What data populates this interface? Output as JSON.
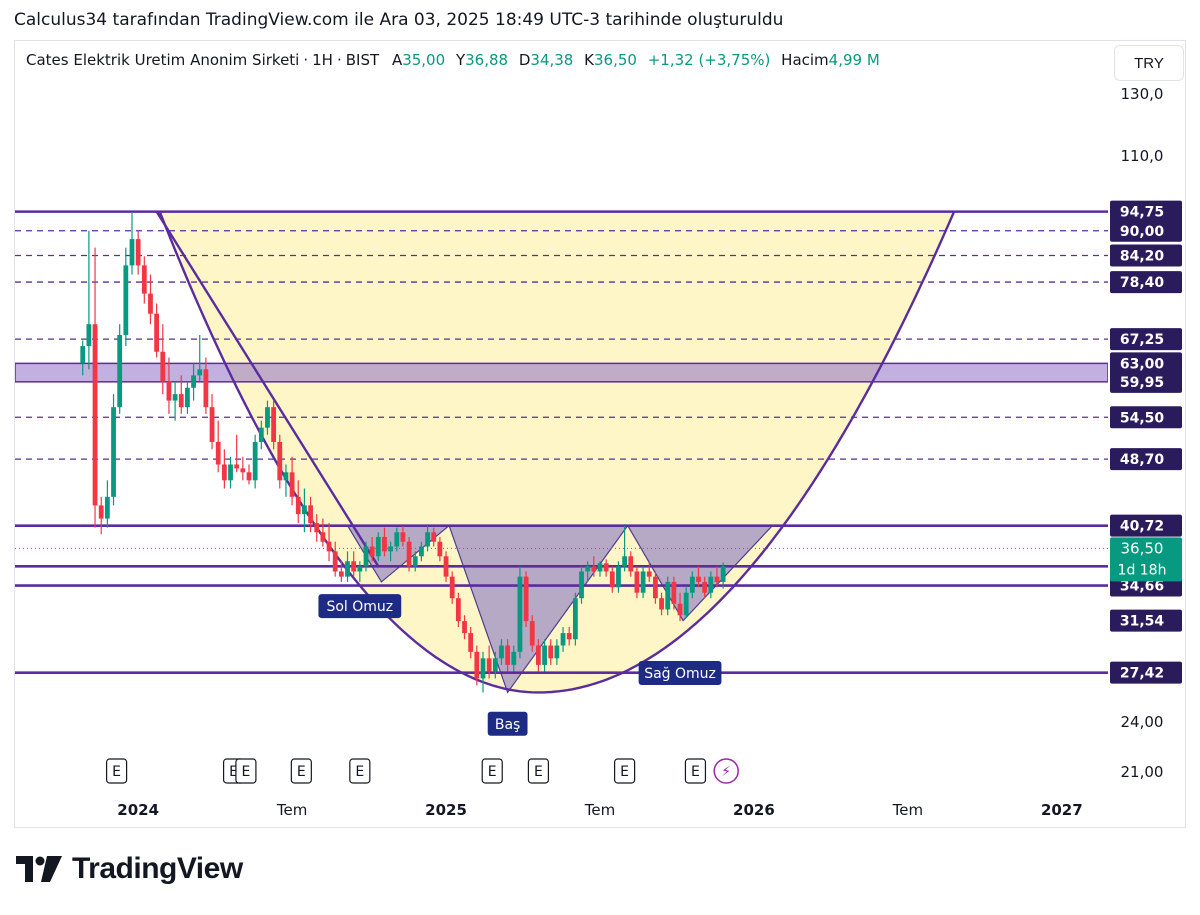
{
  "caption": "Calculus34 tarafından TradingView.com ile Ara 03, 2025 18:49 UTC-3 tarihinde oluşturuldu",
  "legend": {
    "symbol": "Cates Elektrik Uretim Anonim Sirketi",
    "interval": "1H",
    "exchange": "BIST",
    "open_key": "A",
    "open": "35,00",
    "high_key": "Y",
    "high": "36,88",
    "low_key": "D",
    "low": "34,38",
    "close_key": "K",
    "close": "36,50",
    "change": "+1,32 (+3,75%)",
    "volume_key": "Hacim",
    "volume": "4,99 M"
  },
  "currency": "TRY",
  "logo": "TradingView",
  "colors": {
    "up": "#089981",
    "down": "#f23645",
    "line": "#5b2c9e",
    "zone": "#8e6fc6",
    "cup_fill": "#fff6c8",
    "shoulder_fill": "#a99bc5",
    "label_bg": "#1d2b84",
    "price_label_bg": "#2a1c5c",
    "last_price_bg": "#089981"
  },
  "chart_data": {
    "type": "candlestick",
    "title": "Cates Elektrik Uretim Anonim Sirketi · 1H · BIST",
    "ylim": [
      20,
      135
    ],
    "xlim": [
      2023.6,
      2027.15
    ],
    "x_ticks": [
      {
        "x": 2024.0,
        "label": "2024",
        "bold": true
      },
      {
        "x": 2024.5,
        "label": "Tem",
        "bold": false
      },
      {
        "x": 2025.0,
        "label": "2025",
        "bold": true
      },
      {
        "x": 2025.5,
        "label": "Tem",
        "bold": false
      },
      {
        "x": 2026.0,
        "label": "2026",
        "bold": true
      },
      {
        "x": 2026.5,
        "label": "Tem",
        "bold": false
      },
      {
        "x": 2027.0,
        "label": "2027",
        "bold": true
      }
    ],
    "y_ticks": [
      {
        "y": 130,
        "label": "130,0"
      },
      {
        "y": 110,
        "label": "110,0"
      },
      {
        "y": 24,
        "label": "24,00"
      },
      {
        "y": 21,
        "label": "21,00"
      }
    ],
    "solid_levels": [
      94.75,
      40.72,
      36.5,
      34.66,
      27.42
    ],
    "dashed_levels": [
      90.0,
      84.2,
      78.4,
      67.25,
      54.5,
      48.7
    ],
    "zone": [
      59.95,
      63.0
    ],
    "price_labels": [
      "94,75",
      "90,00",
      "84,20",
      "78,40",
      "67,25",
      "63,00",
      "59,95",
      "54,50",
      "48,70",
      "40,72",
      "34,66",
      "31,54",
      "27,42"
    ],
    "price_label_values": [
      94.75,
      90.0,
      84.2,
      78.4,
      67.25,
      63.0,
      59.95,
      54.5,
      48.7,
      40.72,
      34.66,
      31.54,
      27.42
    ],
    "last_price": {
      "value": 36.5,
      "label": "36,50",
      "countdown": "1d 18h"
    },
    "annotations": [
      {
        "text": "Sol Omuz",
        "x": 2024.72,
        "y": 32.8
      },
      {
        "text": "Baş",
        "x": 2025.2,
        "y": 23.9
      },
      {
        "text": "Sağ Omuz",
        "x": 2025.76,
        "y": 27.4
      }
    ],
    "cup": {
      "left": {
        "x": 2024.07,
        "y": 94.75
      },
      "bottom": {
        "x": 2025.3,
        "y": 26.0
      },
      "right": {
        "x": 2026.65,
        "y": 94.75
      }
    },
    "descending_trendline": [
      {
        "x": 2024.06,
        "y": 94.75
      },
      {
        "x": 2024.78,
        "y": 36.5
      }
    ],
    "shoulders": [
      {
        "points": [
          {
            "x": 2024.68,
            "y": 40.72
          },
          {
            "x": 2024.79,
            "y": 35.0
          },
          {
            "x": 2025.01,
            "y": 40.72
          }
        ]
      },
      {
        "points": [
          {
            "x": 2025.01,
            "y": 40.72
          },
          {
            "x": 2025.2,
            "y": 26.0
          },
          {
            "x": 2025.59,
            "y": 40.72
          }
        ]
      },
      {
        "points": [
          {
            "x": 2025.59,
            "y": 40.72
          },
          {
            "x": 2025.77,
            "y": 31.54
          },
          {
            "x": 2026.06,
            "y": 40.72
          }
        ]
      }
    ],
    "events": [
      {
        "x": 2023.93,
        "label": "E"
      },
      {
        "x": 2024.31,
        "label": "E"
      },
      {
        "x": 2024.35,
        "label": "E"
      },
      {
        "x": 2024.53,
        "label": "E"
      },
      {
        "x": 2024.72,
        "label": "E"
      },
      {
        "x": 2025.15,
        "label": "E"
      },
      {
        "x": 2025.3,
        "label": "E"
      },
      {
        "x": 2025.58,
        "label": "E"
      },
      {
        "x": 2025.81,
        "label": "E"
      },
      {
        "x": 2025.91,
        "label": "⚡"
      }
    ],
    "candles": [
      {
        "x": 2023.82,
        "o": 63,
        "h": 67,
        "l": 61,
        "c": 66
      },
      {
        "x": 2023.84,
        "o": 66,
        "h": 90,
        "l": 62,
        "c": 70
      },
      {
        "x": 2023.86,
        "o": 70,
        "h": 86,
        "l": 40.5,
        "c": 43
      },
      {
        "x": 2023.88,
        "o": 43,
        "h": 44,
        "l": 39.8,
        "c": 41.5
      },
      {
        "x": 2023.9,
        "o": 41.5,
        "h": 46,
        "l": 40.5,
        "c": 44
      },
      {
        "x": 2023.92,
        "o": 44,
        "h": 58,
        "l": 43,
        "c": 56
      },
      {
        "x": 2023.94,
        "o": 56,
        "h": 70,
        "l": 55,
        "c": 68
      },
      {
        "x": 2023.96,
        "o": 68,
        "h": 86,
        "l": 66,
        "c": 82
      },
      {
        "x": 2023.98,
        "o": 82,
        "h": 94.75,
        "l": 80,
        "c": 88
      },
      {
        "x": 2024.0,
        "o": 88,
        "h": 90,
        "l": 80,
        "c": 82
      },
      {
        "x": 2024.02,
        "o": 82,
        "h": 84,
        "l": 74,
        "c": 76
      },
      {
        "x": 2024.04,
        "o": 76,
        "h": 80,
        "l": 70,
        "c": 72
      },
      {
        "x": 2024.06,
        "o": 72,
        "h": 74,
        "l": 64,
        "c": 65
      },
      {
        "x": 2024.08,
        "o": 65,
        "h": 70,
        "l": 58,
        "c": 60
      },
      {
        "x": 2024.1,
        "o": 60,
        "h": 64,
        "l": 55,
        "c": 57
      },
      {
        "x": 2024.12,
        "o": 57,
        "h": 60,
        "l": 54,
        "c": 58
      },
      {
        "x": 2024.14,
        "o": 58,
        "h": 61,
        "l": 55,
        "c": 56
      },
      {
        "x": 2024.16,
        "o": 56,
        "h": 60,
        "l": 55,
        "c": 59
      },
      {
        "x": 2024.18,
        "o": 59,
        "h": 63,
        "l": 57,
        "c": 61
      },
      {
        "x": 2024.2,
        "o": 61,
        "h": 68,
        "l": 60,
        "c": 62
      },
      {
        "x": 2024.22,
        "o": 62,
        "h": 64,
        "l": 55,
        "c": 56
      },
      {
        "x": 2024.24,
        "o": 56,
        "h": 58,
        "l": 50,
        "c": 51
      },
      {
        "x": 2024.26,
        "o": 51,
        "h": 54,
        "l": 47,
        "c": 48
      },
      {
        "x": 2024.28,
        "o": 48,
        "h": 50,
        "l": 45,
        "c": 46
      },
      {
        "x": 2024.3,
        "o": 46,
        "h": 49,
        "l": 45,
        "c": 48
      },
      {
        "x": 2024.32,
        "o": 48,
        "h": 52,
        "l": 47,
        "c": 47.5
      },
      {
        "x": 2024.34,
        "o": 47.5,
        "h": 49,
        "l": 46,
        "c": 47
      },
      {
        "x": 2024.36,
        "o": 47,
        "h": 48,
        "l": 45.5,
        "c": 46
      },
      {
        "x": 2024.38,
        "o": 46,
        "h": 52,
        "l": 45,
        "c": 51
      },
      {
        "x": 2024.4,
        "o": 51,
        "h": 54,
        "l": 50,
        "c": 53
      },
      {
        "x": 2024.42,
        "o": 53,
        "h": 57,
        "l": 52,
        "c": 56
      },
      {
        "x": 2024.44,
        "o": 56,
        "h": 57,
        "l": 50,
        "c": 51
      },
      {
        "x": 2024.46,
        "o": 51,
        "h": 52,
        "l": 45,
        "c": 46
      },
      {
        "x": 2024.48,
        "o": 46,
        "h": 48,
        "l": 44,
        "c": 47
      },
      {
        "x": 2024.5,
        "o": 47,
        "h": 49,
        "l": 43,
        "c": 44
      },
      {
        "x": 2024.52,
        "o": 44,
        "h": 46,
        "l": 41,
        "c": 42
      },
      {
        "x": 2024.54,
        "o": 42,
        "h": 45,
        "l": 40,
        "c": 43
      },
      {
        "x": 2024.56,
        "o": 43,
        "h": 44,
        "l": 40,
        "c": 41
      },
      {
        "x": 2024.58,
        "o": 41,
        "h": 42,
        "l": 39,
        "c": 40
      },
      {
        "x": 2024.6,
        "o": 40,
        "h": 41.5,
        "l": 38.5,
        "c": 39
      },
      {
        "x": 2024.62,
        "o": 39,
        "h": 41,
        "l": 37,
        "c": 38
      },
      {
        "x": 2024.64,
        "o": 38,
        "h": 39,
        "l": 35.5,
        "c": 36
      },
      {
        "x": 2024.66,
        "o": 36,
        "h": 37,
        "l": 35,
        "c": 35.5
      },
      {
        "x": 2024.68,
        "o": 35.5,
        "h": 38,
        "l": 35,
        "c": 37
      },
      {
        "x": 2024.7,
        "o": 37,
        "h": 38,
        "l": 35.5,
        "c": 36
      },
      {
        "x": 2024.72,
        "o": 36,
        "h": 37,
        "l": 35,
        "c": 36.5
      },
      {
        "x": 2024.74,
        "o": 36.5,
        "h": 39,
        "l": 36,
        "c": 38.5
      },
      {
        "x": 2024.76,
        "o": 38.5,
        "h": 39.5,
        "l": 37,
        "c": 37.5
      },
      {
        "x": 2024.78,
        "o": 37.5,
        "h": 40,
        "l": 37,
        "c": 39.5
      },
      {
        "x": 2024.8,
        "o": 39.5,
        "h": 40.5,
        "l": 37.5,
        "c": 38
      },
      {
        "x": 2024.82,
        "o": 38,
        "h": 39,
        "l": 37,
        "c": 38.5
      },
      {
        "x": 2024.84,
        "o": 38.5,
        "h": 40.5,
        "l": 38,
        "c": 40
      },
      {
        "x": 2024.86,
        "o": 40,
        "h": 40.7,
        "l": 38.5,
        "c": 39
      },
      {
        "x": 2024.88,
        "o": 39,
        "h": 39.5,
        "l": 36,
        "c": 36.5
      },
      {
        "x": 2024.9,
        "o": 36.5,
        "h": 38,
        "l": 36,
        "c": 37.5
      },
      {
        "x": 2024.92,
        "o": 37.5,
        "h": 39,
        "l": 37,
        "c": 38.5
      },
      {
        "x": 2024.94,
        "o": 38.5,
        "h": 40.7,
        "l": 38,
        "c": 40
      },
      {
        "x": 2024.96,
        "o": 40,
        "h": 40.5,
        "l": 38.5,
        "c": 39
      },
      {
        "x": 2024.98,
        "o": 39,
        "h": 39.5,
        "l": 37,
        "c": 37.5
      },
      {
        "x": 2025.0,
        "o": 37.5,
        "h": 38,
        "l": 35,
        "c": 35.5
      },
      {
        "x": 2025.02,
        "o": 35.5,
        "h": 36,
        "l": 33,
        "c": 33.5
      },
      {
        "x": 2025.04,
        "o": 33.5,
        "h": 34,
        "l": 31,
        "c": 31.5
      },
      {
        "x": 2025.06,
        "o": 31.5,
        "h": 32,
        "l": 30,
        "c": 30.5
      },
      {
        "x": 2025.08,
        "o": 30.5,
        "h": 31,
        "l": 28.5,
        "c": 29
      },
      {
        "x": 2025.1,
        "o": 29,
        "h": 29.5,
        "l": 26.5,
        "c": 27
      },
      {
        "x": 2025.12,
        "o": 27,
        "h": 29,
        "l": 26,
        "c": 28.5
      },
      {
        "x": 2025.14,
        "o": 28.5,
        "h": 29.5,
        "l": 27,
        "c": 27.5
      },
      {
        "x": 2025.16,
        "o": 27.5,
        "h": 29,
        "l": 27,
        "c": 28.5
      },
      {
        "x": 2025.18,
        "o": 28.5,
        "h": 30,
        "l": 28,
        "c": 29.5
      },
      {
        "x": 2025.2,
        "o": 29.5,
        "h": 30,
        "l": 27.5,
        "c": 28
      },
      {
        "x": 2025.22,
        "o": 28,
        "h": 29.5,
        "l": 27.5,
        "c": 29
      },
      {
        "x": 2025.24,
        "o": 29,
        "h": 36.5,
        "l": 28.5,
        "c": 35.5
      },
      {
        "x": 2025.26,
        "o": 35.5,
        "h": 36,
        "l": 31,
        "c": 31.5
      },
      {
        "x": 2025.28,
        "o": 31.5,
        "h": 32,
        "l": 29,
        "c": 29.5
      },
      {
        "x": 2025.3,
        "o": 29.5,
        "h": 30,
        "l": 27.5,
        "c": 28
      },
      {
        "x": 2025.32,
        "o": 28,
        "h": 30,
        "l": 27.5,
        "c": 29.5
      },
      {
        "x": 2025.34,
        "o": 29.5,
        "h": 30,
        "l": 28,
        "c": 28.5
      },
      {
        "x": 2025.36,
        "o": 28.5,
        "h": 30,
        "l": 28,
        "c": 29.5
      },
      {
        "x": 2025.38,
        "o": 29.5,
        "h": 31,
        "l": 29,
        "c": 30.5
      },
      {
        "x": 2025.4,
        "o": 30.5,
        "h": 31,
        "l": 29.5,
        "c": 30
      },
      {
        "x": 2025.42,
        "o": 30,
        "h": 34,
        "l": 29.5,
        "c": 33.5
      },
      {
        "x": 2025.44,
        "o": 33.5,
        "h": 36.5,
        "l": 33,
        "c": 36
      },
      {
        "x": 2025.46,
        "o": 36,
        "h": 37,
        "l": 35,
        "c": 36.5
      },
      {
        "x": 2025.48,
        "o": 36.5,
        "h": 37.5,
        "l": 35.5,
        "c": 36
      },
      {
        "x": 2025.5,
        "o": 36,
        "h": 37,
        "l": 35.5,
        "c": 36.8
      },
      {
        "x": 2025.52,
        "o": 36.8,
        "h": 37.2,
        "l": 35.5,
        "c": 36
      },
      {
        "x": 2025.54,
        "o": 36,
        "h": 36.5,
        "l": 34,
        "c": 34.5
      },
      {
        "x": 2025.56,
        "o": 34.5,
        "h": 37,
        "l": 34,
        "c": 36.5
      },
      {
        "x": 2025.58,
        "o": 36.5,
        "h": 40.7,
        "l": 36,
        "c": 37.5
      },
      {
        "x": 2025.6,
        "o": 37.5,
        "h": 38,
        "l": 35.5,
        "c": 36
      },
      {
        "x": 2025.62,
        "o": 36,
        "h": 36.5,
        "l": 33.5,
        "c": 34
      },
      {
        "x": 2025.64,
        "o": 34,
        "h": 36.5,
        "l": 33.5,
        "c": 36
      },
      {
        "x": 2025.66,
        "o": 36,
        "h": 37,
        "l": 35,
        "c": 35.5
      },
      {
        "x": 2025.68,
        "o": 35.5,
        "h": 36,
        "l": 33,
        "c": 33.5
      },
      {
        "x": 2025.7,
        "o": 33.5,
        "h": 34,
        "l": 32,
        "c": 32.5
      },
      {
        "x": 2025.72,
        "o": 32.5,
        "h": 35.5,
        "l": 32,
        "c": 35
      },
      {
        "x": 2025.74,
        "o": 35,
        "h": 35.5,
        "l": 32.5,
        "c": 33
      },
      {
        "x": 2025.76,
        "o": 33,
        "h": 34,
        "l": 31.5,
        "c": 32
      },
      {
        "x": 2025.78,
        "o": 32,
        "h": 34.5,
        "l": 31.8,
        "c": 34
      },
      {
        "x": 2025.8,
        "o": 34,
        "h": 36,
        "l": 33.5,
        "c": 35.5
      },
      {
        "x": 2025.82,
        "o": 35.5,
        "h": 36.5,
        "l": 34.5,
        "c": 35
      },
      {
        "x": 2025.84,
        "o": 35,
        "h": 35.5,
        "l": 33.5,
        "c": 34
      },
      {
        "x": 2025.86,
        "o": 34,
        "h": 36,
        "l": 33.5,
        "c": 35.5
      },
      {
        "x": 2025.88,
        "o": 35.5,
        "h": 36.5,
        "l": 34.5,
        "c": 35
      },
      {
        "x": 2025.9,
        "o": 35,
        "h": 36.88,
        "l": 34.38,
        "c": 36.5
      }
    ]
  }
}
